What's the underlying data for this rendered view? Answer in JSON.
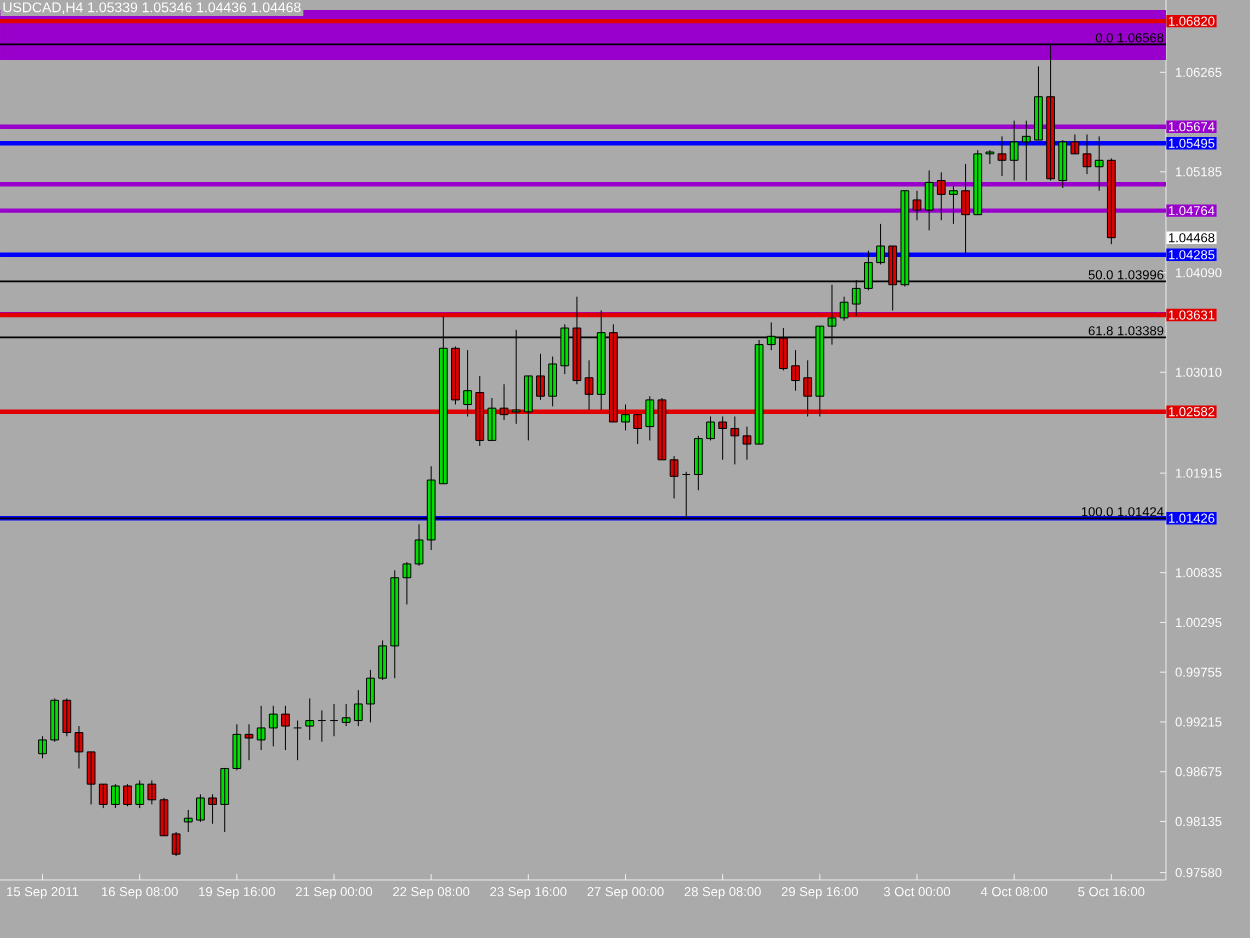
{
  "chart_data": {
    "type": "candlestick",
    "title": "USDCAD,H4 1.05339 1.05346 1.04436 1.04468",
    "categories": [
      "15 Sep 2011",
      null,
      null,
      null,
      null,
      null,
      null,
      null,
      "16 Sep 08:00",
      null,
      null,
      null,
      null,
      null,
      null,
      null,
      "19 Sep 16:00",
      null,
      null,
      null,
      null,
      null,
      null,
      null,
      "21 Sep 00:00",
      null,
      null,
      null,
      null,
      null,
      null,
      null,
      "22 Sep 08:00",
      null,
      null,
      null,
      null,
      null,
      null,
      null,
      "23 Sep 16:00",
      null,
      null,
      null,
      null,
      null,
      null,
      null,
      "27 Sep 00:00",
      null,
      null,
      null,
      null,
      null,
      null,
      null,
      "28 Sep 08:00",
      null,
      null,
      null,
      null,
      null,
      null,
      null,
      "29 Sep 16:00",
      null,
      null,
      null,
      null,
      null,
      null,
      null,
      "3 Oct 00:00",
      null,
      null,
      null,
      null,
      null,
      null,
      null,
      "4 Oct 08:00",
      null,
      null,
      null,
      null,
      null,
      null,
      null,
      "5 Oct 16:00"
    ],
    "ohlc": [
      [
        0.9887,
        0.9906,
        0.9882,
        0.9902
      ],
      [
        0.9902,
        0.9947,
        0.99,
        0.9945
      ],
      [
        0.9945,
        0.9947,
        0.9906,
        0.991
      ],
      [
        0.991,
        0.9917,
        0.9871,
        0.9889
      ],
      [
        0.9889,
        0.9889,
        0.9832,
        0.9854
      ],
      [
        0.9854,
        0.9854,
        0.9828,
        0.9832
      ],
      [
        0.9832,
        0.9854,
        0.9828,
        0.9852
      ],
      [
        0.9852,
        0.9854,
        0.983,
        0.9832
      ],
      [
        0.9832,
        0.9858,
        0.9828,
        0.9854
      ],
      [
        0.9854,
        0.9858,
        0.9832,
        0.9837
      ],
      [
        0.9837,
        0.9839,
        0.9798,
        0.9798
      ],
      [
        0.98,
        0.9802,
        0.9776,
        0.9778
      ],
      [
        0.9813,
        0.9826,
        0.9802,
        0.9817
      ],
      [
        0.9815,
        0.9843,
        0.9813,
        0.9839
      ],
      [
        0.9839,
        0.9843,
        0.9811,
        0.9832
      ],
      [
        0.9832,
        0.9871,
        0.9802,
        0.9871
      ],
      [
        0.9871,
        0.9919,
        0.9869,
        0.9908
      ],
      [
        0.9908,
        0.9919,
        0.988,
        0.9904
      ],
      [
        0.9902,
        0.9939,
        0.9891,
        0.9915
      ],
      [
        0.9915,
        0.9939,
        0.9895,
        0.993
      ],
      [
        0.993,
        0.9939,
        0.9891,
        0.9917
      ],
      [
        0.9915,
        0.9923,
        0.988,
        0.9915
      ],
      [
        0.9917,
        0.9947,
        0.9902,
        0.9923
      ],
      [
        0.9923,
        0.9934,
        0.99,
        0.9923
      ],
      [
        0.9923,
        0.9941,
        0.9906,
        0.9923
      ],
      [
        0.9921,
        0.9941,
        0.9917,
        0.9926
      ],
      [
        0.9923,
        0.9956,
        0.9917,
        0.9941
      ],
      [
        0.9941,
        0.9978,
        0.9921,
        0.9969
      ],
      [
        0.9969,
        1.001,
        0.9967,
        1.0004
      ],
      [
        1.0004,
        1.0086,
        0.9969,
        1.0078
      ],
      [
        1.0078,
        1.0095,
        1.0049,
        1.0093
      ],
      [
        1.0093,
        1.0136,
        1.0091,
        1.0119
      ],
      [
        1.0119,
        1.0199,
        1.0108,
        1.0184
      ],
      [
        1.018,
        1.0362,
        1.018,
        1.0327
      ],
      [
        1.0327,
        1.0329,
        1.0266,
        1.0271
      ],
      [
        1.0266,
        1.0325,
        1.0253,
        1.0281
      ],
      [
        1.0279,
        1.0297,
        1.0221,
        1.0227
      ],
      [
        1.0227,
        1.0273,
        1.0227,
        1.0262
      ],
      [
        1.0262,
        1.0288,
        1.0249,
        1.0255
      ],
      [
        1.0258,
        1.0347,
        1.0245,
        1.026
      ],
      [
        1.0258,
        1.0297,
        1.0227,
        1.0297
      ],
      [
        1.0297,
        1.0321,
        1.0271,
        1.0275
      ],
      [
        1.0275,
        1.0318,
        1.0264,
        1.031
      ],
      [
        1.0308,
        1.0353,
        1.0299,
        1.0349
      ],
      [
        1.0349,
        1.0383,
        1.0288,
        1.0292
      ],
      [
        1.0295,
        1.0314,
        1.026,
        1.0277
      ],
      [
        1.0277,
        1.0368,
        1.026,
        1.0344
      ],
      [
        1.0344,
        1.0353,
        1.0247,
        1.0247
      ],
      [
        1.0247,
        1.0266,
        1.0238,
        1.0255
      ],
      [
        1.0255,
        1.0255,
        1.0223,
        1.024
      ],
      [
        1.0242,
        1.0275,
        1.0227,
        1.0271
      ],
      [
        1.0271,
        1.0273,
        1.0206,
        1.0206
      ],
      [
        1.0206,
        1.021,
        1.0164,
        1.0188
      ],
      [
        1.019,
        1.0193,
        1.0142,
        1.019
      ],
      [
        1.019,
        1.0232,
        1.0173,
        1.0229
      ],
      [
        1.0229,
        1.0253,
        1.0227,
        1.0247
      ],
      [
        1.0247,
        1.0253,
        1.0206,
        1.024
      ],
      [
        1.024,
        1.0253,
        1.0201,
        1.0232
      ],
      [
        1.0232,
        1.0242,
        1.0206,
        1.0223
      ],
      [
        1.0223,
        1.0336,
        1.0223,
        1.0331
      ],
      [
        1.0331,
        1.0355,
        1.0325,
        1.034
      ],
      [
        1.0338,
        1.0349,
        1.0303,
        1.0305
      ],
      [
        1.0308,
        1.0325,
        1.0281,
        1.0292
      ],
      [
        1.0295,
        1.0314,
        1.0253,
        1.0275
      ],
      [
        1.0275,
        1.0351,
        1.0253,
        1.0351
      ],
      [
        1.0351,
        1.0396,
        1.0331,
        1.036
      ],
      [
        1.036,
        1.0383,
        1.0357,
        1.0377
      ],
      [
        1.0375,
        1.0401,
        1.0362,
        1.0392
      ],
      [
        1.0392,
        1.0433,
        1.039,
        1.042
      ],
      [
        1.042,
        1.0462,
        1.0418,
        1.0438
      ],
      [
        1.0438,
        1.0438,
        1.0368,
        1.0396
      ],
      [
        1.0396,
        1.0498,
        1.0394,
        1.0498
      ],
      [
        1.0488,
        1.0498,
        1.0466,
        1.0477
      ],
      [
        1.0477,
        1.052,
        1.0455,
        1.0507
      ],
      [
        1.0509,
        1.0518,
        1.0466,
        1.0494
      ],
      [
        1.0494,
        1.0503,
        1.0462,
        1.0498
      ],
      [
        1.0498,
        1.0527,
        1.0427,
        1.0472
      ],
      [
        1.0472,
        1.0542,
        1.0472,
        1.0538
      ],
      [
        1.0538,
        1.0542,
        1.0527,
        1.054
      ],
      [
        1.0538,
        1.0557,
        1.0514,
        1.0531
      ],
      [
        1.0531,
        1.0574,
        1.0509,
        1.0551
      ],
      [
        1.0551,
        1.0574,
        1.0509,
        1.0557
      ],
      [
        1.0553,
        1.0633,
        1.0553,
        1.06
      ],
      [
        1.06,
        1.0657,
        1.0509,
        1.0511
      ],
      [
        1.0509,
        1.0553,
        1.0501,
        1.0551
      ],
      [
        1.0551,
        1.0559,
        1.0538,
        1.0538
      ],
      [
        1.0538,
        1.0559,
        1.0516,
        1.0524
      ],
      [
        1.0524,
        1.0557,
        1.0498,
        1.0531
      ],
      [
        1.0531,
        1.0533,
        1.044,
        1.0447
      ]
    ],
    "ylim": [
      0.975,
      1.0705
    ],
    "yticks": [
      1.06265,
      1.05185,
      {
        "value": 1.0409,
        "label": "1.04090"
      },
      {
        "value": 1.0301,
        "label": "1.03010"
      },
      1.01915,
      1.00835,
      1.00295,
      0.99755,
      0.99215,
      0.98675,
      0.98135,
      {
        "value": 0.9758,
        "label": "0.97580"
      }
    ],
    "bands": [
      {
        "axis": "y",
        "from": 1.064,
        "to": 1.0694,
        "color": "#9900cc"
      }
    ],
    "ref_lines": [
      {
        "axis": "y",
        "value": 1.0682,
        "label": "1.06820",
        "color": "#e00000"
      },
      {
        "axis": "y",
        "value": 1.06568,
        "label": "0.0 1.06568",
        "color": "#000000"
      },
      {
        "axis": "y",
        "value": 1.05674,
        "label": "1.05674",
        "color": "#9900cc"
      },
      {
        "axis": "y",
        "value": 1.05495,
        "label": "1.05495",
        "color": "#0000ff"
      },
      {
        "axis": "y",
        "value": 1.0505,
        "color": "#9900cc"
      },
      {
        "axis": "y",
        "value": 1.04764,
        "label": "1.04764",
        "color": "#9900cc"
      },
      {
        "axis": "y",
        "value": 1.04285,
        "label": "1.04285",
        "color": "#0000ff"
      },
      {
        "axis": "y",
        "value": 1.03996,
        "label": "50.0 1.03996",
        "color": "#000000"
      },
      {
        "axis": "y",
        "value": 1.0364,
        "color": "#9900cc"
      },
      {
        "axis": "y",
        "value": 1.03631,
        "label": "1.03631",
        "color": "#e00000"
      },
      {
        "axis": "y",
        "value": 1.03389,
        "label": "61.8 1.03389",
        "color": "#000000"
      },
      {
        "axis": "y",
        "value": 1.02582,
        "label": "1.02582",
        "color": "#e00000"
      },
      {
        "axis": "y",
        "value": 1.01426,
        "label": "1.01426",
        "color": "#0000ff"
      },
      {
        "axis": "y",
        "value": 1.01424,
        "label": "100.0 1.01424",
        "color": "#000000"
      }
    ],
    "annotations": [
      "1.04468"
    ]
  }
}
